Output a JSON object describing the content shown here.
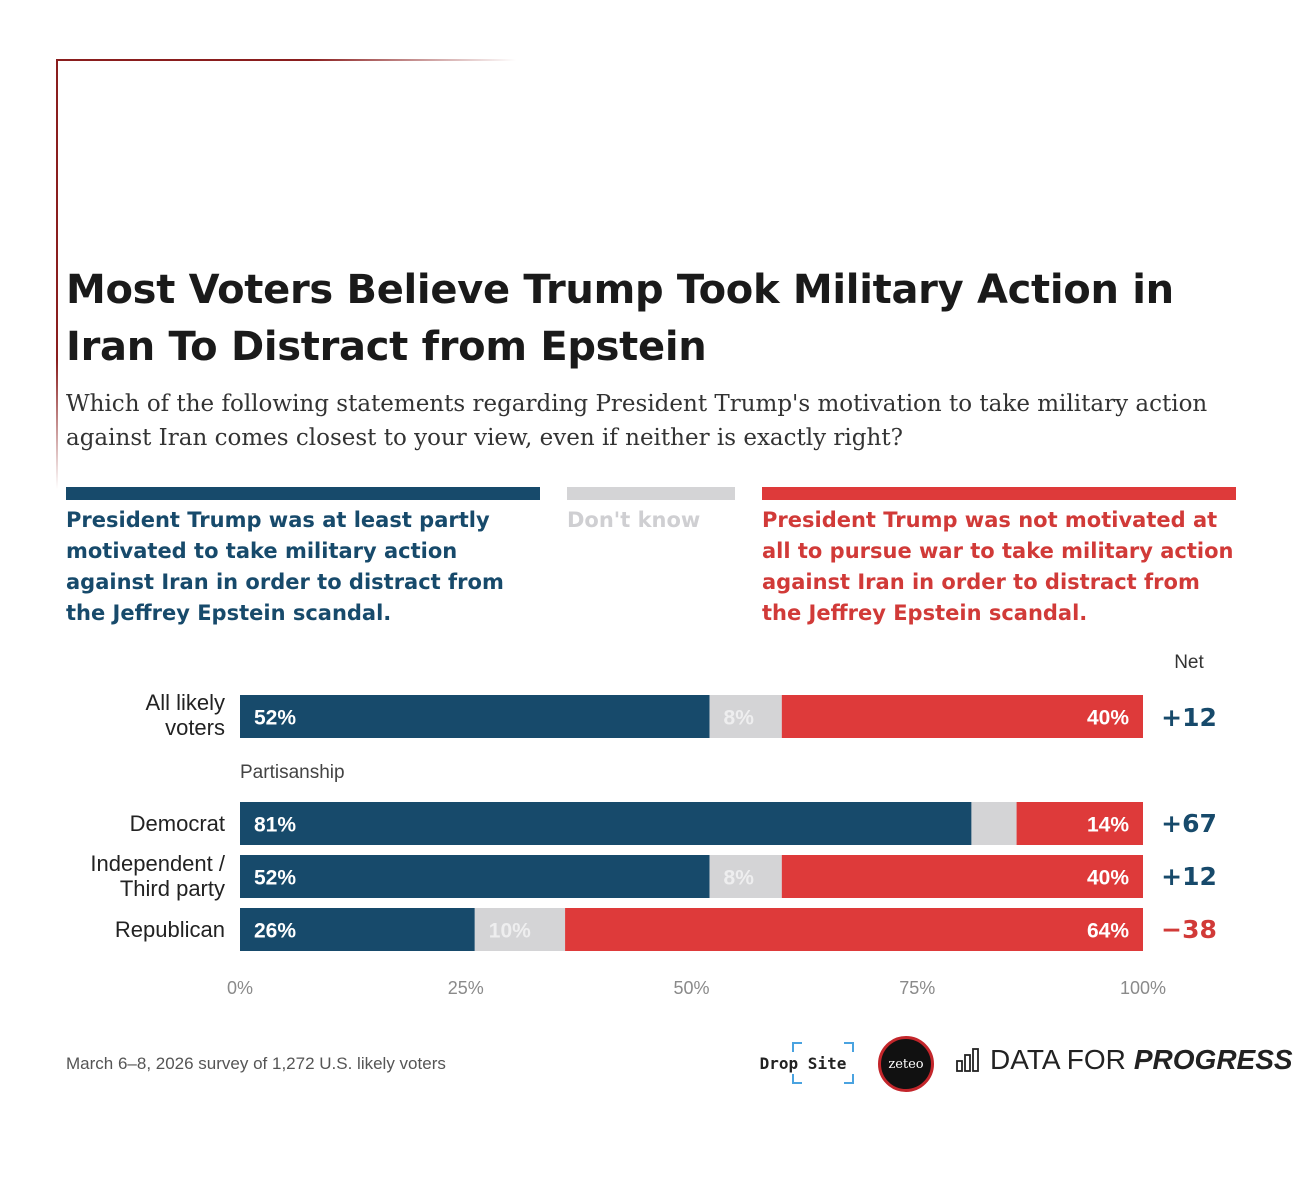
{
  "colors": {
    "blue": "#174a6b",
    "gray": "#d4d4d6",
    "red": "#de3a3a",
    "net_positive": "#174a6b",
    "net_negative": "#d13a38"
  },
  "title": "Most Voters Believe Trump Took Military Action in Iran To Distract from Epstein",
  "subtitle": "Which of the following statements regarding President Trump's motivation to take military action against Iran comes closest to your view, even if neither is exactly right?",
  "legend": {
    "blue": "President Trump was at least partly motivated to take military action against Iran in order to distract from the Jeffrey Epstein scandal.",
    "gray": "Don't know",
    "red": "President Trump was not motivated at all to pursue war to take military action against Iran in order to distract from the Jeffrey Epstein scandal."
  },
  "net_header": "Net",
  "section_label": "Partisanship",
  "rows": [
    {
      "label": "All likely voters",
      "label_lines": [
        "All likely",
        "voters"
      ],
      "net": "+12"
    },
    {
      "label": "Democrat",
      "label_lines": [
        "Democrat"
      ],
      "net": "+67"
    },
    {
      "label": "Independent / Third party",
      "label_lines": [
        "Independent /",
        "Third party"
      ],
      "net": "+12"
    },
    {
      "label": "Republican",
      "label_lines": [
        "Republican"
      ],
      "net": "−38"
    }
  ],
  "chart_data": {
    "type": "bar",
    "orientation": "horizontal",
    "stacked": true,
    "categories": [
      "All likely voters",
      "Democrat",
      "Independent / Third party",
      "Republican"
    ],
    "series": [
      {
        "name": "At least partly motivated",
        "values": [
          52,
          81,
          52,
          26
        ],
        "labels": [
          "52%",
          "81%",
          "52%",
          "26%"
        ]
      },
      {
        "name": "Don't know",
        "values": [
          8,
          5,
          8,
          10
        ],
        "labels": [
          "8%",
          "",
          "8%",
          "10%"
        ]
      },
      {
        "name": "Not motivated at all",
        "values": [
          40,
          14,
          40,
          64
        ],
        "labels": [
          "40%",
          "14%",
          "40%",
          "64%"
        ]
      }
    ],
    "net": [
      "+12",
      "+67",
      "+12",
      "−38"
    ],
    "xlim": [
      0,
      100
    ],
    "xticks": [
      "0%",
      "25%",
      "50%",
      "75%",
      "100%"
    ],
    "xlabel": "",
    "ylabel": "",
    "grid": false,
    "legend_position": "top"
  },
  "source": "March 6–8, 2026 survey of 1,272 U.S. likely voters",
  "logos": {
    "drop_site": "Drop Site",
    "zeteo": "zeteo",
    "dfp_light": "DATA FOR",
    "dfp_bold": "PROGRESS"
  }
}
